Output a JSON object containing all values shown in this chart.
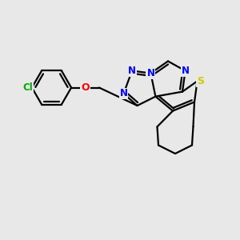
{
  "bg_color": "#e8e8e8",
  "atom_colors": {
    "N": "#0000ff",
    "O": "#ff0000",
    "S": "#cccc00",
    "Cl": "#00aa00"
  },
  "bond_color": "#000000",
  "bond_lw": 1.6
}
